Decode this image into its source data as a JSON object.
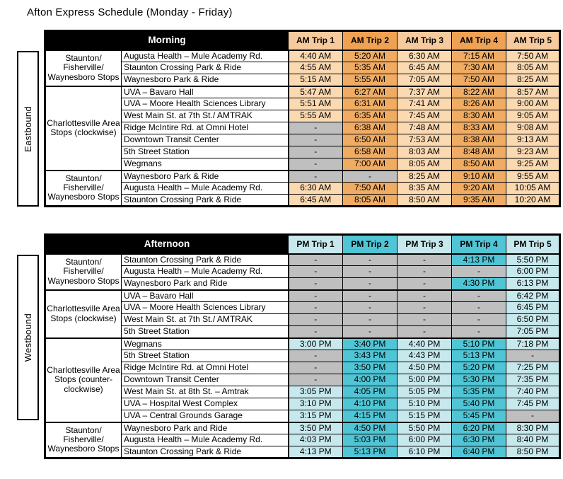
{
  "title": "Afton Express Schedule (Monday - Friday)",
  "empty_marker": "-",
  "colors": {
    "am_header_light": "#F7CA9E",
    "am_header_dark": "#EFA254",
    "am_cell_light": "#FBD9B1",
    "am_cell_dark": "#F0AC63",
    "pm_light": "#C7E8EC",
    "pm_dark": "#50C5D5",
    "empty_cell_gray": "#BFBFBF",
    "band_bg": "#000000",
    "band_text": "#FFFFFF"
  },
  "morning": {
    "band_label": "Morning",
    "direction_label": "Eastbound",
    "trip_headers": [
      "AM Trip 1",
      "AM Trip 2",
      "AM Trip 3",
      "AM Trip 4",
      "AM Trip 5"
    ],
    "groups": [
      {
        "label": "Staunton/\nFisherville/\nWaynesboro Stops",
        "rows": [
          {
            "stop": "Augusta Health – Mule Academy Rd.",
            "times": [
              "4:40 AM",
              "5:20 AM",
              "6:30 AM",
              "7:15 AM",
              "7:50 AM"
            ]
          },
          {
            "stop": "Staunton Crossing Park & Ride",
            "times": [
              "4:55 AM",
              "5:35 AM",
              "6:45 AM",
              "7:30 AM",
              "8:05 AM"
            ]
          },
          {
            "stop": "Waynesboro Park & Ride",
            "times": [
              "5:15 AM",
              "5:55 AM",
              "7:05 AM",
              "7:50 AM",
              "8:25 AM"
            ]
          }
        ]
      },
      {
        "label": "Charlottesville Area\nStops (clockwise)",
        "rows": [
          {
            "stop": "UVA – Bavaro Hall",
            "times": [
              "5:47 AM",
              "6:27 AM",
              "7:37 AM",
              "8:22 AM",
              "8:57 AM"
            ]
          },
          {
            "stop": "UVA – Moore Health Sciences Library",
            "times": [
              "5:51 AM",
              "6:31 AM",
              "7:41 AM",
              "8:26 AM",
              "9:00 AM"
            ]
          },
          {
            "stop": "West Main St. at 7th St./ AMTRAK",
            "times": [
              "5:55 AM",
              "6:35 AM",
              "7:45 AM",
              "8:30 AM",
              "9:05 AM"
            ]
          },
          {
            "stop": "Ridge McIntire Rd. at Omni Hotel",
            "times": [
              "-",
              "6:38 AM",
              "7:48 AM",
              "8:33 AM",
              "9:08 AM"
            ]
          },
          {
            "stop": "Downtown Transit Center",
            "times": [
              "-",
              "6:50 AM",
              "7:53 AM",
              "8:38 AM",
              "9:13 AM"
            ]
          },
          {
            "stop": "5th Street Station",
            "times": [
              "-",
              "6:58 AM",
              "8:03 AM",
              "8:48 AM",
              "9:23 AM"
            ]
          },
          {
            "stop": "Wegmans",
            "times": [
              "-",
              "7:00 AM",
              "8:05 AM",
              "8:50 AM",
              "9:25 AM"
            ]
          }
        ]
      },
      {
        "label": "Staunton/\nFisherville/\nWaynesboro Stops",
        "rows": [
          {
            "stop": "Waynesboro Park & Ride",
            "times": [
              "-",
              "-",
              "8:25 AM",
              "9:10 AM",
              "9:55 AM"
            ]
          },
          {
            "stop": "Augusta Health – Mule Academy Rd.",
            "times": [
              "6:30 AM",
              "7:50 AM",
              "8:35 AM",
              "9:20 AM",
              "10:05 AM"
            ]
          },
          {
            "stop": "Staunton Crossing Park & Ride",
            "times": [
              "6:45 AM",
              "8:05 AM",
              "8:50 AM",
              "9:35 AM",
              "10:20 AM"
            ]
          }
        ]
      }
    ]
  },
  "afternoon": {
    "band_label": "Afternoon",
    "direction_label": "Westbound",
    "trip_headers": [
      "PM Trip 1",
      "PM Trip 2",
      "PM Trip 3",
      "PM Trip 4",
      "PM Trip 5"
    ],
    "groups": [
      {
        "label": "Staunton/\nFisherville/\nWaynesboro Stops",
        "rows": [
          {
            "stop": "Staunton Crossing Park & Ride",
            "times": [
              "-",
              "-",
              "-",
              "4:13 PM",
              "5:50 PM"
            ]
          },
          {
            "stop": "Augusta Health – Mule Academy Rd.",
            "times": [
              "-",
              "-",
              "-",
              "-",
              "6:00 PM"
            ]
          },
          {
            "stop": "Waynesboro Park and Ride",
            "times": [
              "-",
              "-",
              "-",
              "4:30 PM",
              "6:13 PM"
            ]
          }
        ]
      },
      {
        "label": "Charlottesville Area\nStops (clockwise)",
        "rows": [
          {
            "stop": "UVA – Bavaro Hall",
            "times": [
              "-",
              "-",
              "-",
              "-",
              "6:42 PM"
            ]
          },
          {
            "stop": "UVA – Moore Health Sciences Library",
            "times": [
              "-",
              "-",
              "-",
              "-",
              "6:45 PM"
            ]
          },
          {
            "stop": "West Main St. at 7th St./ AMTRAK",
            "times": [
              "-",
              "-",
              "-",
              "-",
              "6:50 PM"
            ]
          },
          {
            "stop": "5th Street Station",
            "times": [
              "-",
              "-",
              "-",
              "-",
              "7:05 PM"
            ]
          }
        ]
      },
      {
        "label": "Charlottesville Area\nStops (counter-\nclockwise)",
        "rows": [
          {
            "stop": "Wegmans",
            "times": [
              "3:00 PM",
              "3:40 PM",
              "4:40 PM",
              "5:10 PM",
              "7:18 PM"
            ]
          },
          {
            "stop": "5th Street Station",
            "times": [
              "-",
              "3:43 PM",
              "4:43 PM",
              "5:13 PM",
              "-"
            ]
          },
          {
            "stop": "Ridge McIntire Rd. at Omni Hotel",
            "times": [
              "-",
              "3:50 PM",
              "4:50 PM",
              "5:20 PM",
              "7:25 PM"
            ]
          },
          {
            "stop": "Downtown Transit Center",
            "times": [
              "-",
              "4:00 PM",
              "5:00 PM",
              "5:30 PM",
              "7:35 PM"
            ]
          },
          {
            "stop": "West Main St. at 8th St. – Amtrak",
            "times": [
              "3:05 PM",
              "4:05 PM",
              "5:05 PM",
              "5:35 PM",
              "7:40 PM"
            ]
          },
          {
            "stop": "UVA – Hospital West Complex",
            "times": [
              "3:10 PM",
              "4:10 PM",
              "5:10 PM",
              "5:40 PM",
              "7:45 PM"
            ]
          },
          {
            "stop": "UVA – Central Grounds Garage",
            "times": [
              "3:15 PM",
              "4:15 PM",
              "5:15 PM",
              "5:45 PM",
              "-"
            ]
          }
        ]
      },
      {
        "label": "Staunton/\nFisherville/\nWaynesboro Stops",
        "rows": [
          {
            "stop": "Waynesboro Park and Ride",
            "times": [
              "3:50 PM",
              "4:50 PM",
              "5:50 PM",
              "6:20 PM",
              "8:30 PM"
            ]
          },
          {
            "stop": "Augusta Health – Mule Academy Rd.",
            "times": [
              "4:03 PM",
              "5:03 PM",
              "6:00 PM",
              "6:30 PM",
              "8:40 PM"
            ]
          },
          {
            "stop": "Staunton Crossing Park & Ride",
            "times": [
              "4:13 PM",
              "5:13 PM",
              "6:10 PM",
              "6:40 PM",
              "8:50 PM"
            ]
          }
        ]
      }
    ]
  }
}
